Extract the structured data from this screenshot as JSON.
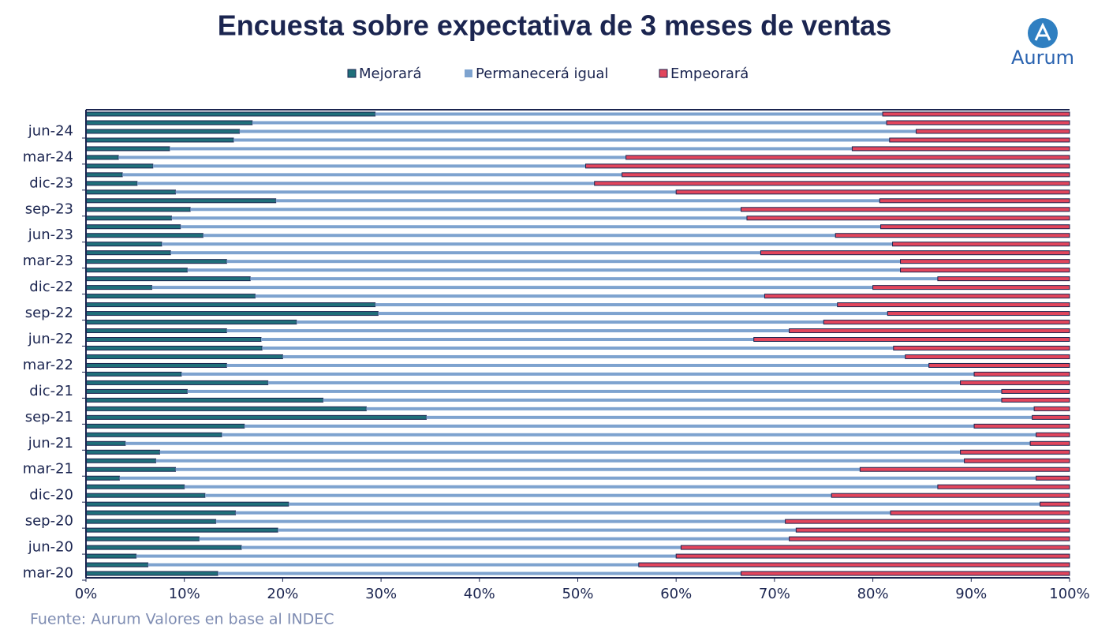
{
  "chart_data": {
    "type": "stacked-barh",
    "title": "Encuesta sobre expectativa de 3 meses de ventas",
    "source": "Fuente: Aurum Valores en base al INDEC",
    "logo_text": "Aurum",
    "categories": [
      "mar-20",
      null,
      null,
      "jun-20",
      null,
      null,
      "sep-20",
      null,
      null,
      "dic-20",
      null,
      null,
      "mar-21",
      null,
      null,
      "jun-21",
      null,
      null,
      "sep-21",
      null,
      null,
      "dic-21",
      null,
      null,
      "mar-22",
      null,
      null,
      "jun-22",
      null,
      null,
      "sep-22",
      null,
      null,
      "dic-22",
      null,
      null,
      "mar-23",
      null,
      null,
      "jun-23",
      null,
      null,
      "sep-23",
      null,
      null,
      "dic-23",
      null,
      null,
      "mar-24",
      null,
      null,
      "jun-24",
      null,
      null
    ],
    "series": [
      {
        "name": "Mejorará",
        "color": "#1f6f7a",
        "values": [
          13.4,
          6.3,
          5.1,
          15.8,
          11.5,
          19.5,
          13.2,
          15.2,
          20.6,
          12.1,
          10.0,
          3.4,
          9.1,
          7.1,
          7.5,
          4.0,
          13.8,
          16.1,
          34.6,
          28.5,
          24.1,
          10.3,
          18.5,
          9.7,
          14.3,
          20.0,
          17.9,
          17.8,
          14.3,
          21.4,
          29.7,
          29.4,
          17.2,
          6.7,
          16.7,
          10.3,
          14.3,
          8.6,
          7.7,
          11.9,
          9.6,
          8.7,
          10.6,
          19.3,
          9.1,
          5.2,
          3.7,
          6.8,
          3.3,
          8.5,
          15.0,
          15.6,
          16.9,
          29.4
        ]
      },
      {
        "name": "Permanecerá igual",
        "color": "#7ea3cf",
        "values": [
          53.2,
          49.9,
          54.9,
          44.7,
          60.0,
          52.7,
          57.9,
          66.6,
          76.4,
          63.7,
          76.6,
          93.2,
          69.6,
          82.2,
          81.4,
          92.0,
          82.8,
          74.2,
          61.6,
          67.9,
          69.0,
          82.8,
          70.4,
          80.6,
          71.4,
          63.3,
          64.2,
          50.1,
          57.2,
          53.6,
          51.8,
          47.0,
          51.8,
          73.3,
          69.9,
          72.5,
          68.5,
          60.0,
          74.3,
          64.3,
          71.2,
          58.5,
          56.0,
          61.4,
          50.9,
          46.5,
          50.8,
          44.0,
          51.6,
          69.4,
          66.7,
          68.8,
          64.5,
          51.6
        ]
      },
      {
        "name": "Empeorará",
        "color": "#e2455c",
        "values": [
          33.4,
          43.8,
          40.0,
          39.5,
          28.5,
          27.8,
          28.9,
          18.2,
          3.0,
          24.2,
          13.4,
          3.4,
          21.3,
          10.7,
          11.1,
          4.0,
          3.4,
          9.7,
          3.8,
          3.6,
          6.9,
          6.9,
          11.1,
          9.7,
          14.3,
          16.7,
          17.9,
          32.1,
          28.5,
          25.0,
          18.5,
          23.6,
          31.0,
          20.0,
          13.4,
          17.2,
          17.2,
          31.4,
          18.0,
          23.8,
          19.2,
          32.8,
          33.4,
          19.3,
          40.0,
          48.3,
          45.5,
          49.2,
          45.1,
          22.1,
          18.3,
          15.6,
          18.6,
          19.0
        ]
      }
    ],
    "xlim": [
      0,
      100
    ],
    "xticks": [
      {
        "value": 0,
        "label": "0%"
      },
      {
        "value": 10,
        "label": "10%"
      },
      {
        "value": 20,
        "label": "20%"
      },
      {
        "value": 30,
        "label": "30%"
      },
      {
        "value": 40,
        "label": "40%"
      },
      {
        "value": 50,
        "label": "50%"
      },
      {
        "value": 60,
        "label": "60%"
      },
      {
        "value": 70,
        "label": "70%"
      },
      {
        "value": 80,
        "label": "80%"
      },
      {
        "value": 90,
        "label": "90%"
      },
      {
        "value": 100,
        "label": "100%"
      }
    ],
    "legend": "top"
  }
}
